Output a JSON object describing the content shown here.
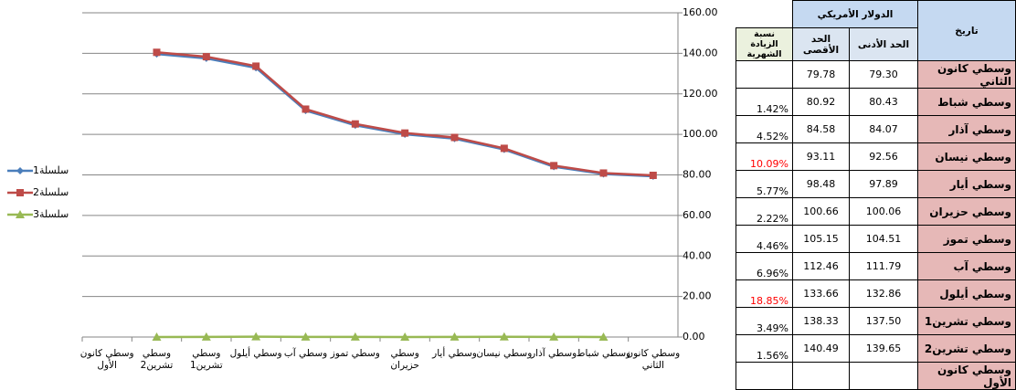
{
  "chart_data": {
    "type": "line",
    "categories": [
      "وسطي كانون الثاني",
      "وسطي شباط",
      "وسطي آذار",
      "وسطي نيسان",
      "وسطي أيار",
      "وسطي حزيران",
      "وسطي تموز",
      "وسطي آب",
      "وسطي أيلول",
      "وسطي تشرين1",
      "وسطي تشرين2",
      "وسطي كانون الأول"
    ],
    "series": [
      {
        "name": "سلسلة1",
        "color": "#4a7ebb",
        "marker": "diamond",
        "values": [
          79.3,
          80.43,
          84.07,
          92.56,
          97.89,
          100.06,
          104.51,
          111.79,
          132.86,
          137.5,
          139.65,
          null
        ]
      },
      {
        "name": "سلسلة2",
        "color": "#be4b48",
        "marker": "square",
        "values": [
          79.78,
          80.92,
          84.58,
          93.11,
          98.48,
          100.66,
          105.15,
          112.46,
          133.66,
          138.33,
          140.49,
          null
        ]
      },
      {
        "name": "سلسلة3",
        "color": "#98b954",
        "marker": "triangle",
        "values": [
          null,
          0.0142,
          0.0452,
          0.1009,
          0.0577,
          0.0222,
          0.0446,
          0.0696,
          0.1885,
          0.0349,
          0.0156,
          null
        ]
      }
    ],
    "x_reversed": true,
    "ylim": [
      0,
      160
    ],
    "yticks": [
      {
        "value": 0,
        "label": "0.00"
      },
      {
        "value": 20,
        "label": "20.00"
      },
      {
        "value": 40,
        "label": "40.00"
      },
      {
        "value": 60,
        "label": "60.00"
      },
      {
        "value": 80,
        "label": "80.00"
      },
      {
        "value": 100,
        "label": "100.00"
      },
      {
        "value": 120,
        "label": "120.00"
      },
      {
        "value": 140,
        "label": "140.00"
      },
      {
        "value": 160,
        "label": "160.00"
      }
    ],
    "grid": true,
    "legend": "left"
  },
  "table": {
    "headers": {
      "date": "تاريخ",
      "currency": "الدولار الأمريكي",
      "min": "الحد الأدنى",
      "max": "الحد الأقصى",
      "pct": "نسبة الزيادة الشهرية"
    },
    "rows": [
      [
        "وسطي كانون الثاني",
        "79.30",
        "79.78"
      ],
      [
        "وسطي شباط",
        "80.43",
        "80.92",
        "1.42%"
      ],
      [
        "وسطي آذار",
        "84.07",
        "84.58",
        "4.52%"
      ],
      [
        "وسطي نيسان",
        "92.56",
        "93.11",
        "10.09%"
      ],
      [
        "وسطي أيار",
        "97.89",
        "98.48",
        "5.77%"
      ],
      [
        "وسطي حزيران",
        "100.06",
        "100.66",
        "2.22%"
      ],
      [
        "وسطي تموز",
        "104.51",
        "105.15",
        "4.46%"
      ],
      [
        "وسطي آب",
        "111.79",
        "112.46",
        "6.96%"
      ],
      [
        "وسطي أيلول",
        "132.86",
        "133.66",
        "18.85%"
      ],
      [
        "وسطي تشرين1",
        "137.50",
        "138.33",
        "3.49%"
      ],
      [
        "وسطي تشرين2",
        "139.65",
        "140.49",
        "1.56%"
      ],
      [
        "وسطي كانون الأول"
      ]
    ],
    "highlight_rows": [
      3,
      8
    ],
    "highlight_color": "#ff0000"
  }
}
